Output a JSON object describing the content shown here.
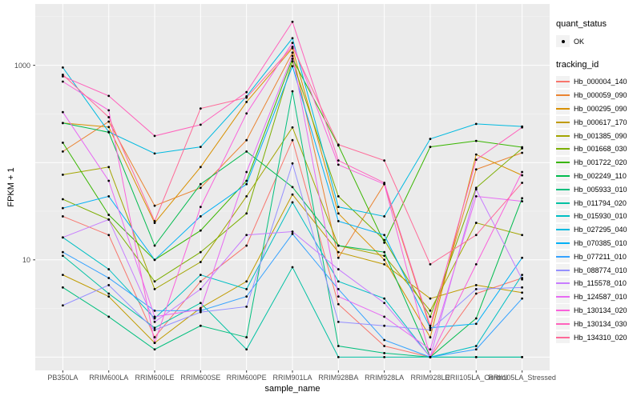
{
  "figure": {
    "background": "#FFFFFF",
    "panel_background": "#EBEBEB",
    "grid_major_color": "#FFFFFF",
    "grid_minor_color": "#F5F5F5",
    "tick_color": "#333333",
    "axis_text_color": "#4D4D4D",
    "point_color": "#000000"
  },
  "legend": {
    "quant_status": {
      "title": "quant_status",
      "items": [
        {
          "label": "OK",
          "marker": "point-icon",
          "color": "#000000"
        }
      ]
    },
    "tracking": {
      "title": "tracking_id"
    }
  },
  "chart_data": {
    "type": "line",
    "title": "",
    "xlabel": "sample_name",
    "ylabel": "FPKM + 1",
    "y_scale": "log10",
    "ylim": [
      0.73,
      4270
    ],
    "x_expand": 0.6,
    "grid": true,
    "legend_position": "right",
    "y_ticks": [
      {
        "label": "1000",
        "value": 1000
      },
      {
        "label": "10",
        "value": 10
      }
    ],
    "y_gridlines_major": [
      1,
      10,
      100,
      1000
    ],
    "y_gridlines_minor": [
      3.162,
      31.62,
      316.2,
      3162
    ],
    "categories": [
      "PB350LA",
      "RRIM600LA",
      "RRIM600LE",
      "RRIM600SE",
      "RRIM600PE",
      "RRIM901LA",
      "RRIM928BA",
      "RRIM928LA",
      "RRIM928LE",
      "RRII105LA_Control",
      "RRII105LA_Stressed"
    ],
    "series": [
      {
        "name": "Hb_000004_140",
        "color": "#F8766D",
        "values": [
          28,
          18,
          1.6,
          6,
          14,
          170,
          3.5,
          1.3,
          1,
          4.5,
          6.5
        ]
      },
      {
        "name": "Hb_000059_090",
        "color": "#EA8331",
        "values": [
          130,
          264,
          36,
          55,
          170,
          1350,
          10.5,
          60,
          2,
          85,
          126
        ]
      },
      {
        "name": "Hb_000295_090",
        "color": "#D89000",
        "values": [
          255,
          232,
          24,
          90,
          420,
          1500,
          30,
          10,
          1.6,
          121,
          74
        ]
      },
      {
        "name": "Hb_000617_170",
        "color": "#C09B00",
        "values": [
          7,
          4.2,
          1.4,
          3.2,
          6,
          47,
          12,
          9,
          4,
          5.5,
          4.6
        ]
      },
      {
        "name": "Hb_001385_090",
        "color": "#A3A500",
        "values": [
          75,
          90,
          5,
          9.5,
          45,
          230,
          14,
          11,
          3,
          24,
          18
        ]
      },
      {
        "name": "Hb_001668_030",
        "color": "#7CAE00",
        "values": [
          42,
          26,
          6,
          12,
          30,
          1100,
          45,
          16,
          2.6,
          55,
          140
        ]
      },
      {
        "name": "Hb_001722_020",
        "color": "#39B600",
        "values": [
          160,
          29,
          10,
          20,
          65,
          1170,
          150,
          15,
          145,
          167,
          144
        ]
      },
      {
        "name": "Hb_002249_110",
        "color": "#00BB4E",
        "values": [
          255,
          205,
          14,
          60,
          130,
          56,
          14,
          12,
          1,
          2.5,
          43
        ]
      },
      {
        "name": "Hb_005933_010",
        "color": "#00BF7D",
        "values": [
          5.2,
          2.6,
          1.2,
          2.1,
          1.6,
          540,
          1.3,
          1.1,
          1,
          1,
          1
        ]
      },
      {
        "name": "Hb_011794_020",
        "color": "#00C1A3",
        "values": [
          11,
          4.5,
          2,
          3.6,
          1.2,
          8.4,
          1,
          1,
          1,
          1,
          1
        ]
      },
      {
        "name": "Hb_015930_010",
        "color": "#00BFC4",
        "values": [
          17,
          8,
          2.5,
          7,
          5,
          39,
          6,
          4,
          1,
          1.3,
          7
        ]
      },
      {
        "name": "Hb_027295_040",
        "color": "#00BAE0",
        "values": [
          950,
          207,
          124,
          145,
          480,
          1900,
          35,
          28,
          175,
          250,
          235
        ]
      },
      {
        "name": "Hb_070385_010",
        "color": "#00B0F6",
        "values": [
          34,
          45,
          10,
          28,
          60,
          980,
          25,
          18,
          2,
          2.2,
          10.5
        ]
      },
      {
        "name": "Hb_077211_010",
        "color": "#35A2FF",
        "values": [
          12,
          6.5,
          3,
          3,
          4.2,
          18.5,
          5,
          1.5,
          1,
          1.2,
          4
        ]
      },
      {
        "name": "Hb_088774_010",
        "color": "#9590FF",
        "values": [
          3.4,
          5.5,
          1.9,
          2.9,
          3.3,
          98,
          2.3,
          2.1,
          1.9,
          5,
          5.2
        ]
      },
      {
        "name": "Hb_115578_010",
        "color": "#C77CFF",
        "values": [
          17,
          26,
          2.3,
          5,
          18,
          19.5,
          8,
          3.6,
          1,
          53,
          6.3
        ]
      },
      {
        "name": "Hb_124587_010",
        "color": "#E76BF3",
        "values": [
          330,
          65,
          2.6,
          3.1,
          80,
          1250,
          4.2,
          2.6,
          1.2,
          45,
          40
        ]
      },
      {
        "name": "Hb_130134_020",
        "color": "#FA62DB",
        "values": [
          680,
          345,
          1.4,
          35,
          320,
          1700,
          95,
          60,
          1,
          9,
          80
        ]
      },
      {
        "name": "Hb_130134_030",
        "color": "#FF62BC",
        "values": [
          770,
          485,
          188,
          245,
          530,
          2800,
          105,
          62,
          2.1,
          107,
          230
        ]
      },
      {
        "name": "Hb_134310_020",
        "color": "#FF6A98",
        "values": [
          800,
          293,
          25,
          360,
          465,
          1550,
          153,
          105,
          9,
          18,
          62
        ]
      }
    ]
  }
}
